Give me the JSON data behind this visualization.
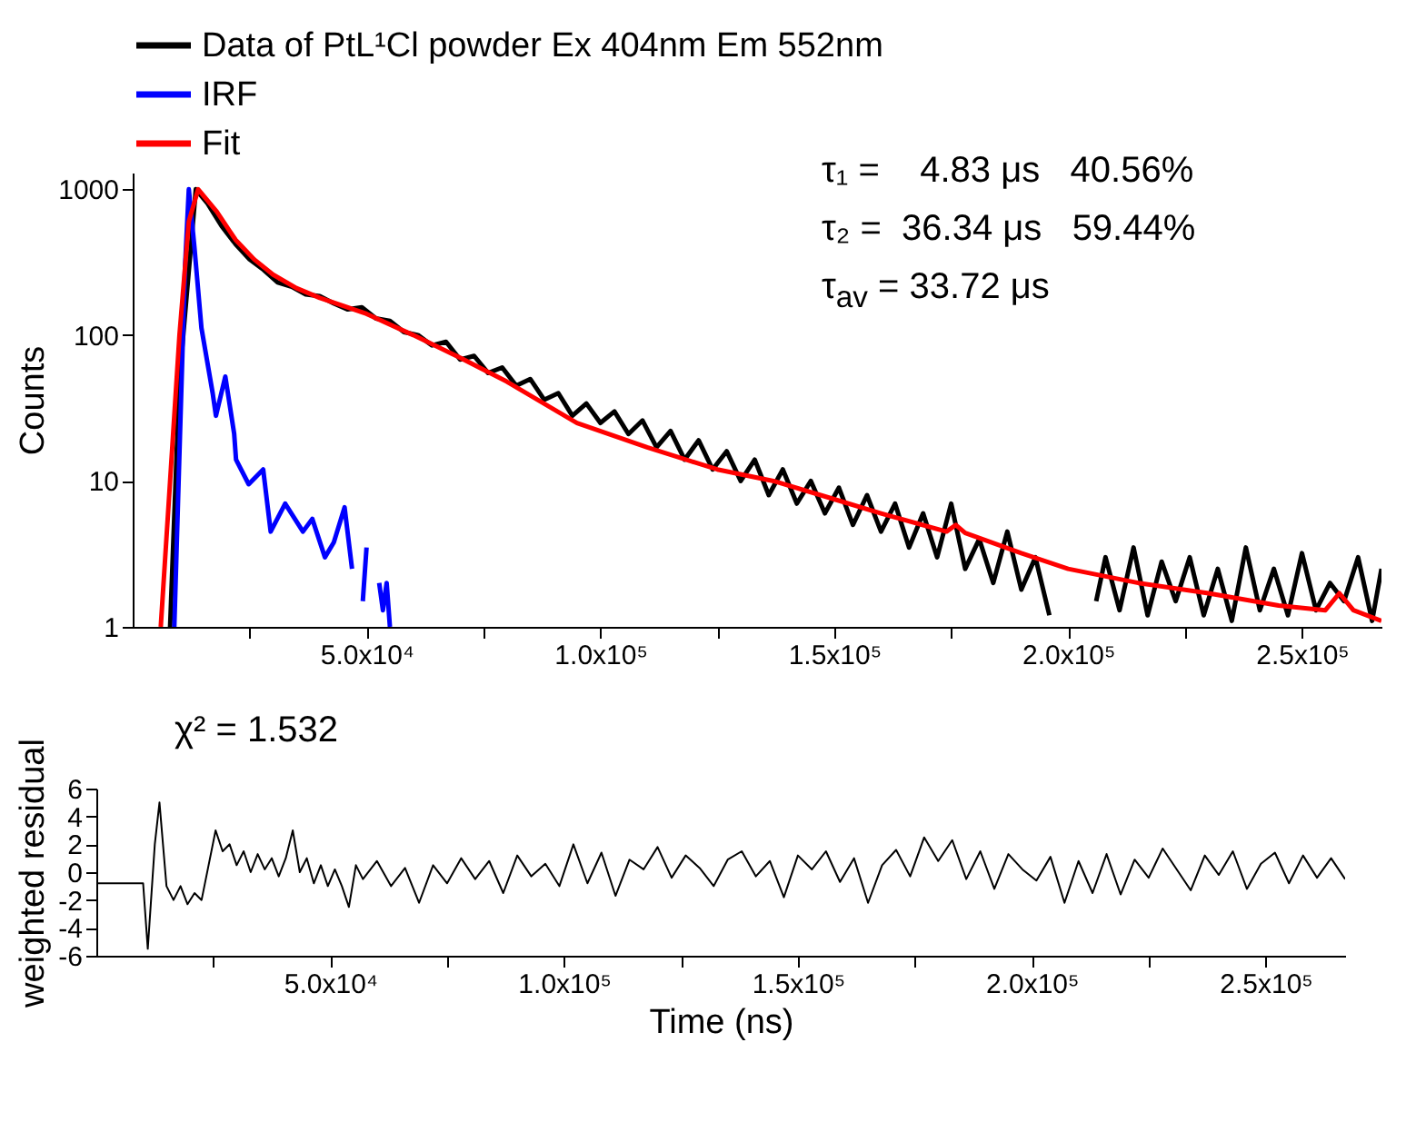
{
  "chart_data": [
    {
      "type": "line",
      "ylabel": "Counts",
      "log": "y",
      "legend": "top",
      "marker": "none",
      "xlim": [
        0,
        267000
      ],
      "xticks": [
        {
          "value": 25000,
          "label": null
        },
        {
          "value": 50000,
          "label": "5.0x10⁴"
        },
        {
          "value": 75000,
          "label": null
        },
        {
          "value": 100000,
          "label": "1.0x10⁵"
        },
        {
          "value": 125000,
          "label": null
        },
        {
          "value": 150000,
          "label": "1.5x10⁵"
        },
        {
          "value": 175000,
          "label": null
        },
        {
          "value": 200000,
          "label": "2.0x10⁵"
        },
        {
          "value": 225000,
          "label": null
        },
        {
          "value": 250000,
          "label": "2.5x10⁵"
        }
      ],
      "ylim": [
        1,
        1300
      ],
      "yticks": [
        1,
        10,
        100,
        1000
      ],
      "annotations": [
        "τ₁ =    4.83 μs   40.56%",
        "τ₂ =  36.34 μs   59.44%",
        "τ$_{av}$ = 33.72 μs"
      ],
      "series": [
        {
          "name": "Data of PtL¹Cl powder Ex 404nm Em 552nm",
          "color": "#000000",
          "x": [
            8000,
            10000,
            13500,
            16000,
            19000,
            22000,
            25000,
            28000,
            31000,
            34000,
            37000,
            40000,
            43000,
            46000,
            49000,
            52000,
            55000,
            58000,
            61000,
            64000,
            67000,
            70000,
            73000,
            76000,
            79000,
            82000,
            85000,
            88000,
            91000,
            94000,
            97000,
            100000,
            103000,
            106000,
            109000,
            112000,
            115000,
            118000,
            121000,
            124000,
            127000,
            130000,
            133000,
            136000,
            139000,
            142000,
            145000,
            148000,
            151000,
            154000,
            157000,
            160000,
            163000,
            166000,
            169000,
            172000,
            175000,
            178000,
            181000,
            184000,
            187000,
            190000,
            193000,
            196000,
            198000,
            205000,
            206000,
            208000,
            211000,
            214000,
            217000,
            220000,
            223000,
            226000,
            229000,
            232000,
            235000,
            238000,
            241000,
            244000,
            247000,
            250000,
            253000,
            256000,
            259000,
            262000,
            265000,
            267000
          ],
          "values": [
            1,
            50,
            1000,
            800,
            560,
            420,
            330,
            280,
            230,
            215,
            190,
            185,
            165,
            150,
            155,
            130,
            125,
            105,
            100,
            85,
            90,
            68,
            72,
            55,
            60,
            45,
            50,
            36,
            40,
            28,
            34,
            25,
            30,
            21,
            26,
            17,
            22,
            14,
            19,
            12,
            16,
            10,
            14,
            8,
            12,
            7,
            10,
            6,
            9,
            5,
            8,
            4.5,
            7,
            3.5,
            6,
            3,
            7,
            2.5,
            4,
            2,
            4.5,
            1.8,
            3,
            1.2,
            null,
            null,
            1.5,
            3,
            1.3,
            3.5,
            1.2,
            2.8,
            1.5,
            3,
            1.2,
            2.5,
            1.1,
            3.5,
            1.3,
            2.5,
            1.2,
            3.2,
            1.3,
            2,
            1.5,
            3,
            1.1,
            2.5
          ]
        },
        {
          "name": "IRF",
          "color": "#0000ff",
          "x": [
            8900,
            10100,
            11200,
            12000,
            13200,
            14700,
            17100,
            17800,
            19800,
            21700,
            22100,
            24800,
            27900,
            29500,
            32600,
            36400,
            38400,
            41100,
            43000,
            45300,
            46900,
            48000,
            49200,
            50000,
            51000,
            52700,
            53500,
            54300,
            55000
          ],
          "values": [
            1,
            20,
            300,
            1000,
            400,
            112,
            40,
            28,
            52,
            21,
            14,
            9.5,
            12,
            4.5,
            7,
            4.5,
            5.5,
            3,
            3.8,
            6.6,
            2.5,
            null,
            1.5,
            3.5,
            null,
            2,
            1.3,
            2,
            1
          ]
        },
        {
          "name": "Fit",
          "color": "#ff0000",
          "x": [
            6000,
            8000,
            10000,
            12000,
            14000,
            18000,
            22000,
            26000,
            30000,
            35000,
            40000,
            50000,
            60000,
            70000,
            80000,
            95000,
            110000,
            125000,
            137000,
            150000,
            160000,
            174000,
            176000,
            178000,
            190000,
            200000,
            215000,
            230000,
            245000,
            255000,
            258000,
            261000,
            267000
          ],
          "values": [
            1,
            10,
            100,
            600,
            1000,
            700,
            450,
            330,
            260,
            210,
            180,
            140,
            100,
            70,
            48,
            25,
            17,
            12,
            10,
            7.5,
            6,
            4.5,
            5,
            4.4,
            3.2,
            2.5,
            2,
            1.7,
            1.4,
            1.3,
            1.7,
            1.3,
            1.1
          ]
        }
      ]
    },
    {
      "type": "line",
      "xlabel": "Time (ns)",
      "ylabel": "weighted residual",
      "marker": "none",
      "xlim": [
        0,
        267000
      ],
      "xticks": [
        {
          "value": 25000,
          "label": null
        },
        {
          "value": 50000,
          "label": "5.0x10⁴"
        },
        {
          "value": 75000,
          "label": null
        },
        {
          "value": 100000,
          "label": "1.0x10⁵"
        },
        {
          "value": 125000,
          "label": null
        },
        {
          "value": 150000,
          "label": "1.5x10⁵"
        },
        {
          "value": 175000,
          "label": null
        },
        {
          "value": 200000,
          "label": "2.0x10⁵"
        },
        {
          "value": 225000,
          "label": null
        },
        {
          "value": 250000,
          "label": "2.5x10⁵"
        }
      ],
      "ylim": [
        -6,
        6
      ],
      "yticks": [
        -6,
        -4,
        -2,
        0,
        2,
        4,
        6
      ],
      "annotations": [
        "χ² = 1.532"
      ],
      "series": [
        {
          "color": "#000000",
          "x": [
            0,
            10000,
            11000,
            12500,
            13500,
            15000,
            16500,
            18000,
            19500,
            21000,
            22500,
            24000,
            25500,
            27000,
            28500,
            30000,
            31500,
            33000,
            34500,
            36000,
            37500,
            39000,
            40500,
            42000,
            43500,
            45000,
            46500,
            48000,
            49500,
            51000,
            52500,
            54000,
            55500,
            57000,
            60000,
            63000,
            66000,
            69000,
            72000,
            75000,
            78000,
            81000,
            84000,
            87000,
            90000,
            93000,
            96000,
            99000,
            102000,
            105000,
            108000,
            111000,
            114000,
            117000,
            120000,
            123000,
            126000,
            129000,
            132000,
            135000,
            138000,
            141000,
            144000,
            147000,
            150000,
            153000,
            156000,
            159000,
            162000,
            165000,
            168000,
            171000,
            174000,
            177000,
            180000,
            183000,
            186000,
            189000,
            192000,
            195000,
            198000,
            201000,
            204000,
            207000,
            210000,
            213000,
            216000,
            219000,
            222000,
            225000,
            228000,
            231000,
            234000,
            237000,
            240000,
            243000,
            246000,
            249000,
            252000,
            255000,
            258000,
            261000,
            264000,
            267000
          ],
          "values": [
            -0.8,
            -0.8,
            -5.5,
            2,
            5,
            -1,
            -2,
            -1,
            -2.3,
            -1.5,
            -2,
            0.5,
            3,
            1.5,
            2,
            0.5,
            1.5,
            0,
            1.3,
            0.2,
            1,
            -0.3,
            1,
            3,
            0,
            1,
            -0.8,
            0.5,
            -1,
            0.2,
            -1,
            -2.5,
            0.5,
            -0.5,
            0.8,
            -1,
            0.3,
            -2.2,
            0.5,
            -0.8,
            1,
            -0.5,
            0.8,
            -1.5,
            1.2,
            -0.3,
            0.6,
            -1,
            2,
            -0.8,
            1.4,
            -1.7,
            0.9,
            0.2,
            1.8,
            -0.4,
            1.2,
            0.3,
            -1,
            0.9,
            1.5,
            -0.3,
            0.8,
            -1.8,
            1.2,
            0.2,
            1.5,
            -0.7,
            1,
            -2.2,
            0.5,
            1.6,
            -0.3,
            2.5,
            0.8,
            2.3,
            -0.5,
            1.5,
            -1.2,
            1.3,
            0.2,
            -0.6,
            1.1,
            -2.2,
            0.8,
            -1.5,
            1.3,
            -1.6,
            0.9,
            -0.4,
            1.7,
            0.2,
            -1.3,
            1.2,
            -0.2,
            1.5,
            -1.2,
            0.6,
            1.4,
            -0.8,
            1.2,
            -0.4,
            1,
            -0.5
          ]
        }
      ]
    }
  ]
}
